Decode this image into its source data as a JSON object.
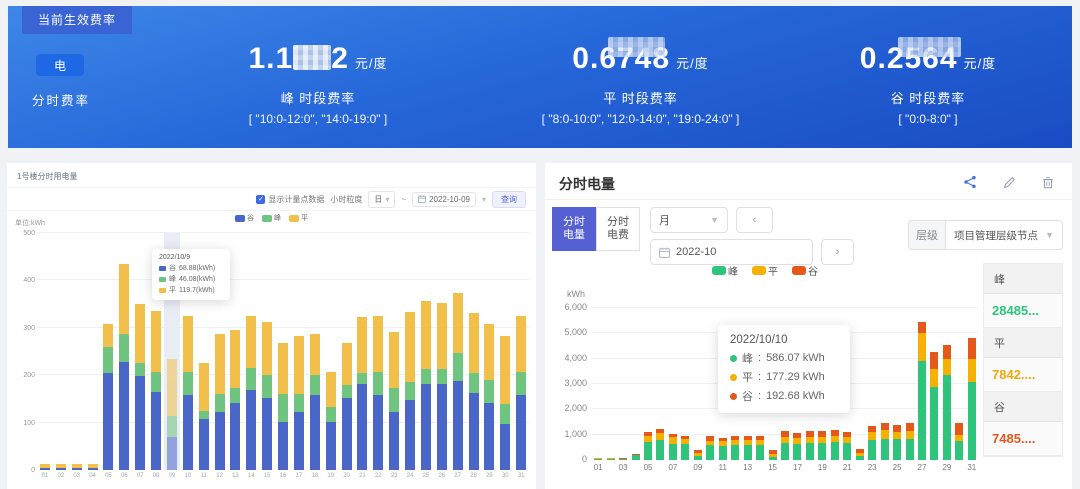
{
  "banner": {
    "tab": "当前生效费率",
    "energy_chip": "电",
    "rate_type": "分时费率",
    "unit": "元/度",
    "rates": [
      {
        "prefix": "1.1",
        "suffix": "2",
        "label": "峰 时段费率",
        "periods": "[ \"10:0-12:0\", \"14:0-19:0\" ]"
      },
      {
        "value": "0.6748",
        "label": "平 时段费率",
        "periods": "[ \"8:0-10:0\", \"12:0-14:0\", \"19:0-24:0\" ]"
      },
      {
        "value": "0.2564",
        "label": "谷 时段费率",
        "periods": "[ \"0:0-8:0\" ]"
      }
    ]
  },
  "left_panel": {
    "title": "1号楼分时用电量",
    "toolbar": {
      "checkbox_label": "显示计量点数据",
      "granularity_label": "小时粒度",
      "select_value": "日",
      "range_sep": "~",
      "date_value": "2022-10-09",
      "button": "查询"
    },
    "tooltip": {
      "date": "2022/10/9",
      "rows": [
        {
          "name": "谷",
          "value": "68.88(kWh)",
          "color": "#4a66c8"
        },
        {
          "name": "峰",
          "value": "46.08(kWh)",
          "color": "#6fc57f"
        },
        {
          "name": "平",
          "value": "119.7(kWh)",
          "color": "#f2c04a"
        }
      ]
    }
  },
  "right_panel": {
    "title": "分时电量",
    "toggle": [
      {
        "line1": "分时",
        "line2": "电量",
        "active": true
      },
      {
        "line1": "分时",
        "line2": "电费",
        "active": false
      }
    ],
    "period_select": "月",
    "prev": "‹",
    "next": "›",
    "date_value": "2022-10",
    "level_label": "层级",
    "level_value": "项目管理层级节点",
    "tooltip": {
      "date": "2022/10/10",
      "rows": [
        {
          "name": "峰",
          "value": "586.07 kWh",
          "color": "#2ec47c"
        },
        {
          "name": "平",
          "value": "177.29 kWh",
          "color": "#f5b000"
        },
        {
          "name": "谷",
          "value": "192.68 kWh",
          "color": "#e4581c"
        }
      ]
    },
    "summary": [
      {
        "name": "峰",
        "value": "28485...",
        "color": "#2ec47c"
      },
      {
        "name": "平",
        "value": "7842....",
        "color": "#f0a80a"
      },
      {
        "name": "谷",
        "value": "7485....",
        "color": "#e4581c"
      }
    ]
  },
  "chart_data": [
    {
      "type": "bar",
      "stacked": true,
      "title": "1号楼分时用电量",
      "unit_label": "单位:kWh",
      "ylim": [
        0,
        500
      ],
      "yticks": [
        0,
        100,
        200,
        300,
        400,
        500
      ],
      "grid": true,
      "legend_position": "top-center",
      "highlight_index": 8,
      "categories": [
        "01",
        "02",
        "03",
        "04",
        "05",
        "06",
        "07",
        "08",
        "09",
        "10",
        "11",
        "12",
        "13",
        "14",
        "15",
        "16",
        "17",
        "18",
        "19",
        "20",
        "21",
        "22",
        "23",
        "24",
        "25",
        "26",
        "27",
        "28",
        "29",
        "30",
        "31"
      ],
      "series": [
        {
          "name": "谷",
          "color": "#4a66c8",
          "values": [
            4,
            4,
            4,
            4,
            205,
            228,
            198,
            165,
            69,
            158,
            108,
            122,
            142,
            168,
            152,
            102,
            122,
            158,
            102,
            152,
            182,
            158,
            122,
            148,
            182,
            182,
            188,
            162,
            142,
            98,
            158
          ]
        },
        {
          "name": "峰",
          "color": "#6fc57f",
          "values": [
            0,
            0,
            0,
            0,
            55,
            58,
            28,
            42,
            46,
            48,
            16,
            38,
            32,
            48,
            48,
            58,
            38,
            42,
            32,
            28,
            22,
            48,
            52,
            38,
            32,
            32,
            58,
            42,
            48,
            42,
            48
          ]
        },
        {
          "name": "平",
          "color": "#f2c04a",
          "values": [
            8,
            8,
            8,
            8,
            48,
            148,
            125,
            128,
            120,
            118,
            102,
            128,
            122,
            108,
            112,
            108,
            122,
            88,
            72,
            88,
            118,
            118,
            118,
            148,
            142,
            138,
            128,
            128,
            118,
            142,
            118
          ]
        }
      ]
    },
    {
      "type": "bar",
      "stacked": true,
      "title": "分时电量",
      "unit_label": "kWh",
      "ylabel": "kWh",
      "ylim": [
        0,
        6000
      ],
      "yticks": [
        0,
        1000,
        2000,
        3000,
        4000,
        5000,
        6000
      ],
      "grid": true,
      "legend_position": "top-center",
      "categories": [
        "01",
        "02",
        "03",
        "04",
        "05",
        "06",
        "07",
        "08",
        "09",
        "10",
        "11",
        "12",
        "13",
        "14",
        "15",
        "16",
        "17",
        "18",
        "19",
        "20",
        "21",
        "22",
        "23",
        "24",
        "25",
        "26",
        "27",
        "28",
        "29",
        "30",
        "31"
      ],
      "series": [
        {
          "name": "峰",
          "color": "#2ec47c",
          "values": [
            40,
            40,
            35,
            180,
            700,
            780,
            650,
            640,
            150,
            586,
            560,
            600,
            600,
            600,
            120,
            680,
            650,
            680,
            680,
            700,
            680,
            150,
            800,
            850,
            820,
            840,
            3900,
            2900,
            3350,
            750,
            3100
          ]
        },
        {
          "name": "平",
          "color": "#f5b000",
          "values": [
            25,
            25,
            20,
            30,
            250,
            280,
            250,
            200,
            130,
            177,
            180,
            200,
            200,
            200,
            130,
            250,
            230,
            250,
            250,
            260,
            250,
            130,
            300,
            320,
            300,
            320,
            1100,
            700,
            650,
            250,
            900
          ]
        },
        {
          "name": "谷",
          "color": "#e4581c",
          "values": [
            25,
            25,
            20,
            20,
            150,
            160,
            140,
            120,
            100,
            193,
            130,
            150,
            150,
            160,
            130,
            200,
            180,
            200,
            200,
            210,
            190,
            170,
            250,
            280,
            270,
            290,
            450,
            650,
            550,
            450,
            800
          ]
        }
      ]
    }
  ]
}
